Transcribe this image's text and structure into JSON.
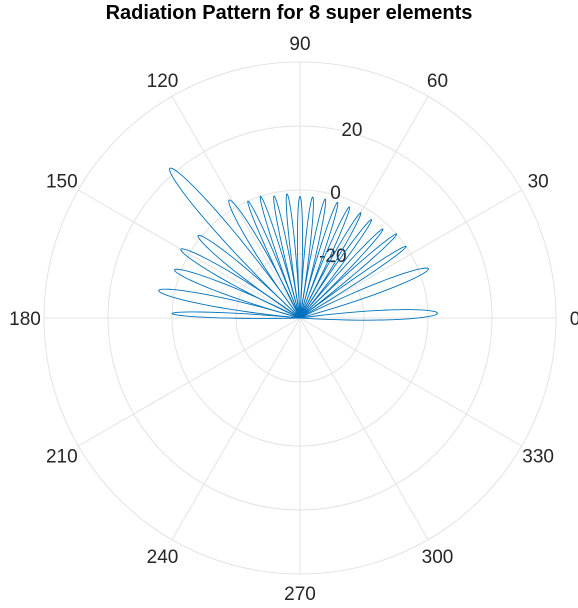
{
  "chart_data": {
    "type": "polar-line",
    "title": "Radiation Pattern for 8 super elements",
    "theta_unit": "degrees",
    "theta_ticks": [
      "0",
      "30",
      "60",
      "90",
      "120",
      "150",
      "180",
      "210",
      "240",
      "270",
      "300",
      "330"
    ],
    "r_ticks": [
      "-20",
      "0",
      "20"
    ],
    "r_tick_values": [
      -20,
      0,
      20
    ],
    "r_lim": [
      -40,
      40
    ],
    "grid": true,
    "series": [
      {
        "color": "#0072BD",
        "lobes": [
          {
            "peak_angle_deg": 2,
            "peak_r": 3
          },
          {
            "peak_angle_deg": 21,
            "peak_r": 3
          },
          {
            "peak_angle_deg": 34,
            "peak_r": 0
          },
          {
            "peak_angle_deg": 41,
            "peak_r": 0
          },
          {
            "peak_angle_deg": 47,
            "peak_r": -2
          },
          {
            "peak_angle_deg": 54,
            "peak_r": -2
          },
          {
            "peak_angle_deg": 60,
            "peak_r": -2
          },
          {
            "peak_angle_deg": 66,
            "peak_r": -2
          },
          {
            "peak_angle_deg": 72,
            "peak_r": -2
          },
          {
            "peak_angle_deg": 78,
            "peak_r": -2
          },
          {
            "peak_angle_deg": 84,
            "peak_r": -2
          },
          {
            "peak_angle_deg": 90,
            "peak_r": -2
          },
          {
            "peak_angle_deg": 96,
            "peak_r": -1
          },
          {
            "peak_angle_deg": 102,
            "peak_r": -1
          },
          {
            "peak_angle_deg": 108,
            "peak_r": 0
          },
          {
            "peak_angle_deg": 114,
            "peak_r": 0
          },
          {
            "peak_angle_deg": 121,
            "peak_r": 3
          },
          {
            "peak_angle_deg": 131,
            "peak_r": 22
          },
          {
            "peak_angle_deg": 141,
            "peak_r": 1
          },
          {
            "peak_angle_deg": 150,
            "peak_r": 3
          },
          {
            "peak_angle_deg": 159,
            "peak_r": 2
          },
          {
            "peak_angle_deg": 169,
            "peak_r": 5
          },
          {
            "peak_angle_deg": 178,
            "peak_r": 0
          }
        ]
      }
    ]
  }
}
